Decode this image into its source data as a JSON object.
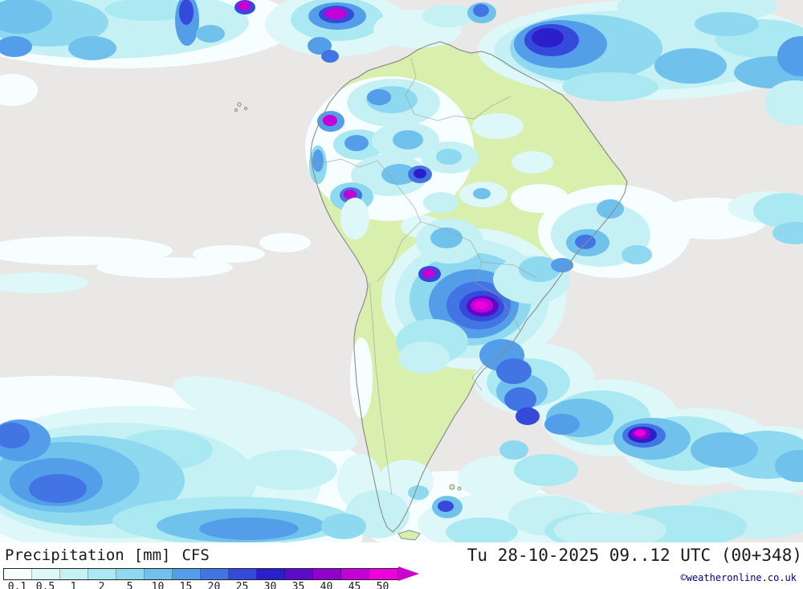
{
  "map": {
    "region_label": "South America precipitation forecast map",
    "ocean_color": "#e9e8e6",
    "land_color": "#d9efae",
    "coast_color": "#8c8c8c",
    "border_color": "#9a9a9a"
  },
  "legend": {
    "parameter": "Precipitation",
    "unit": "[mm]",
    "model": "CFS",
    "datetime": "Tu 28-10-2025 09..12 UTC (00+348)",
    "copyright": "©weatheronline.co.uk",
    "scale_values": [
      "0.1",
      "0.5",
      "1",
      "2",
      "5",
      "10",
      "15",
      "20",
      "25",
      "30",
      "35",
      "40",
      "45",
      "50"
    ],
    "scale_colors": [
      "#f7feff",
      "#def8f9",
      "#c5f1f5",
      "#abe9f2",
      "#8fd9f0",
      "#70c2ec",
      "#549de8",
      "#4274e4",
      "#3549da",
      "#2a1fcb",
      "#5c0bc8",
      "#9002cc",
      "#c400d6",
      "#ee00de"
    ],
    "arrow_color": "#cc00cc",
    "text_color": "#1a1a1a",
    "copyright_color": "#00007d"
  }
}
